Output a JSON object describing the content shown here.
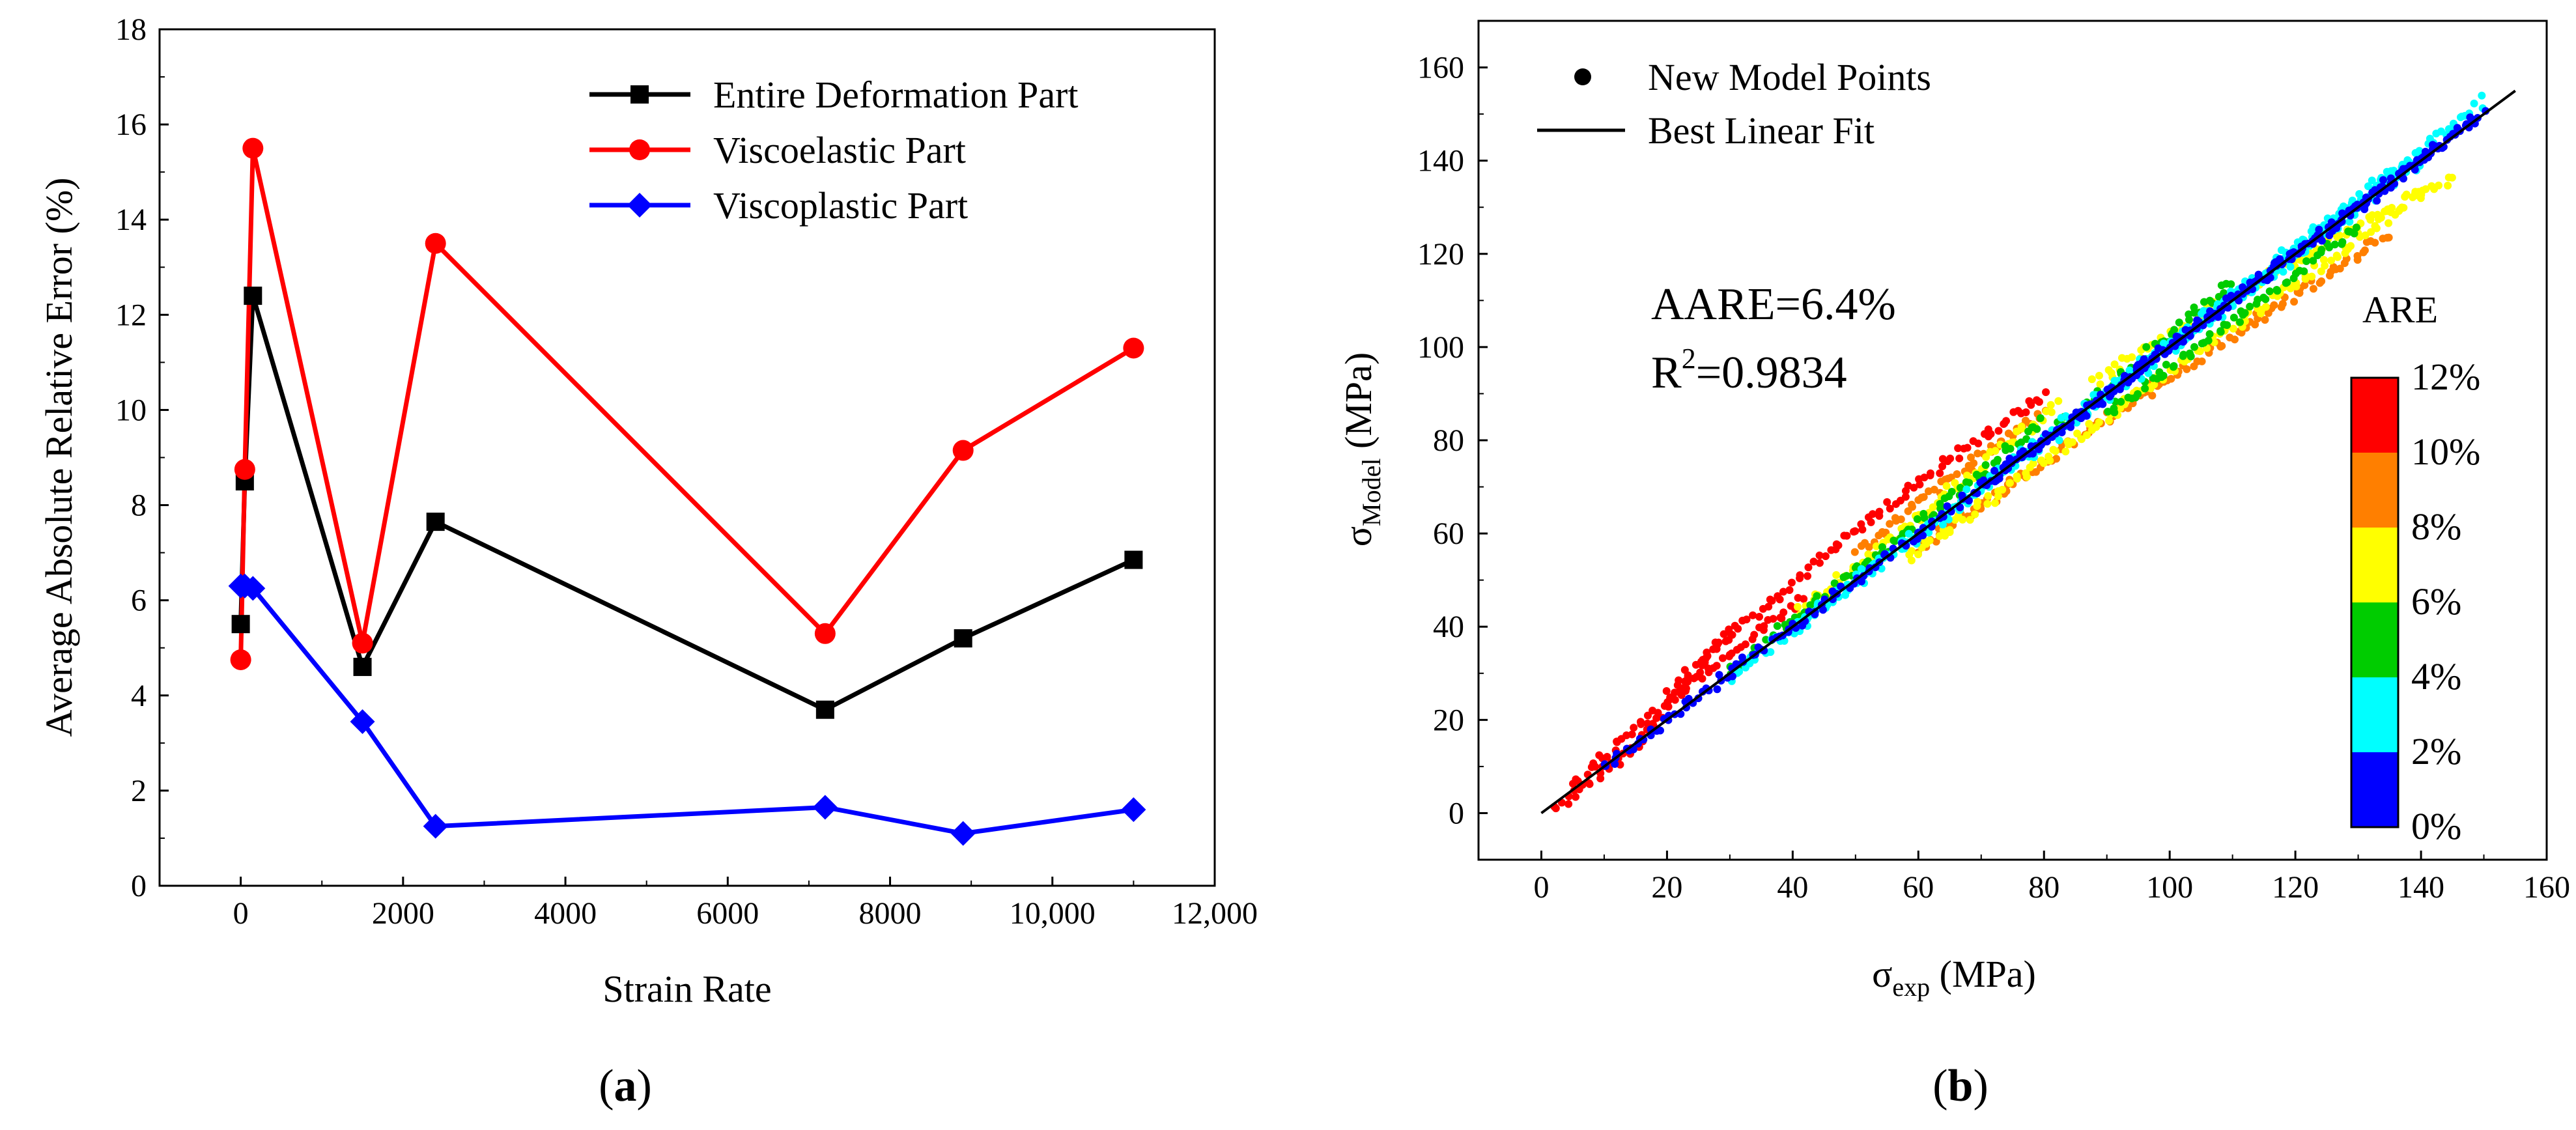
{
  "colors": {
    "entire": "#000000",
    "viscoelastic": "#ff0000",
    "viscoplastic": "#0000ff",
    "fit_line": "#000000"
  },
  "panel_a": {
    "label": "(",
    "label_bold": "a",
    "label_close": ")"
  },
  "panel_b": {
    "label": "(",
    "label_bold": "b",
    "label_close": ")",
    "legend_points": "New Model Points",
    "legend_fit": "Best Linear Fit",
    "aare_text": "AARE=6.4%",
    "r2_prefix": "R",
    "r2_sup": "2",
    "r2_value": "=0.9834",
    "colorbar_title": "ARE",
    "ylabel_sigma": "σ",
    "ylabel_sub": "Model",
    "ylabel_unit": " (MPa)",
    "xlabel_sigma": "σ",
    "xlabel_sub": "exp",
    "xlabel_unit": " (MPa)"
  },
  "chart_data": [
    {
      "type": "line",
      "title": "",
      "xlabel": "Strain Rate",
      "ylabel": "Average Absolute Relative Error (%)",
      "xlim": [
        -1000,
        12000
      ],
      "ylim": [
        0,
        18
      ],
      "xticks": [
        0,
        2000,
        4000,
        6000,
        8000,
        10000,
        12000
      ],
      "xtick_labels": [
        "0",
        "2000",
        "4000",
        "6000",
        "8000",
        "10,000",
        "12,000"
      ],
      "yticks": [
        0,
        2,
        4,
        6,
        8,
        10,
        12,
        14,
        16,
        18
      ],
      "ytick_labels": [
        "0",
        "2",
        "4",
        "6",
        "8",
        "10",
        "12",
        "14",
        "16",
        "18"
      ],
      "legend_position": "top-right",
      "series": [
        {
          "name": "Entire Deformation Part",
          "marker": "square",
          "x": [
            0.01,
            50,
            150,
            1500,
            2400,
            7200,
            8900,
            11000
          ],
          "y": [
            5.5,
            8.5,
            12.4,
            4.6,
            7.65,
            3.7,
            5.2,
            6.85
          ]
        },
        {
          "name": "Viscoelastic Part",
          "marker": "circle",
          "x": [
            0.01,
            50,
            150,
            1500,
            2400,
            7200,
            8900,
            11000
          ],
          "y": [
            4.75,
            8.75,
            15.5,
            5.1,
            13.5,
            5.3,
            9.15,
            11.3
          ]
        },
        {
          "name": "Viscoplastic Part",
          "marker": "diamond",
          "x": [
            0.01,
            50,
            150,
            1500,
            2400,
            7200,
            8900,
            11000
          ],
          "y": [
            6.3,
            6.3,
            6.25,
            3.45,
            1.25,
            1.65,
            1.1,
            1.6
          ]
        }
      ]
    },
    {
      "type": "scatter",
      "title": "",
      "xlabel": "σexp (MPa)",
      "ylabel": "σModel (MPa)",
      "xlim": [
        -10,
        160
      ],
      "ylim": [
        -10,
        170
      ],
      "xticks": [
        0,
        20,
        40,
        60,
        80,
        100,
        120,
        140,
        160
      ],
      "xtick_labels": [
        "0",
        "20",
        "40",
        "60",
        "80",
        "100",
        "120",
        "140",
        "160"
      ],
      "yticks": [
        0,
        20,
        40,
        60,
        80,
        100,
        120,
        140,
        160
      ],
      "ytick_labels": [
        "0",
        "20",
        "40",
        "60",
        "80",
        "100",
        "120",
        "140",
        "160"
      ],
      "legend_position": "top-left",
      "fit_line": {
        "x": [
          0,
          155
        ],
        "y": [
          0,
          155
        ]
      },
      "colorbar": {
        "title": "ARE",
        "labels": [
          "12%",
          "10%",
          "8%",
          "6%",
          "4%",
          "2%",
          "0%"
        ],
        "colors": [
          "#ff0000",
          "#ff7f00",
          "#ffff00",
          "#00cc00",
          "#00ffff",
          "#0000ff"
        ]
      },
      "bands": [
        {
          "color": "#ff0000",
          "segments": [
            [
              2,
              0.7,
              30,
              1.35
            ],
            [
              20,
              1.3,
              80,
              1.12
            ],
            [
              5,
              1.25,
              42,
              1.1
            ]
          ]
        },
        {
          "color": "#ff7f00",
          "segments": [
            [
              60,
              0.95,
              135,
              0.92
            ],
            [
              50,
              1.12,
              80,
              1.08
            ]
          ]
        },
        {
          "color": "#ffff00",
          "segments": [
            [
              40,
              1.05,
              82,
              1.07
            ],
            [
              58,
              0.94,
              140,
              0.95
            ],
            [
              88,
              1.05,
              145,
              0.94
            ]
          ]
        },
        {
          "color": "#00cc00",
          "segments": [
            [
              30,
              1.02,
              80,
              1.05
            ],
            [
              80,
              1.0,
              110,
              1.04
            ],
            [
              90,
              0.95,
              130,
              0.97
            ]
          ]
        },
        {
          "color": "#00ffff",
          "segments": [
            [
              30,
              0.98,
              140,
              1.0
            ],
            [
              40,
              1.0,
              150,
              1.02
            ],
            [
              100,
              1.0,
              138,
              1.01
            ]
          ]
        },
        {
          "color": "#0000ff",
          "segments": [
            [
              10,
              1.0,
              150,
              1.0
            ],
            [
              70,
              1.0,
              148,
              1.005
            ]
          ]
        }
      ]
    }
  ]
}
